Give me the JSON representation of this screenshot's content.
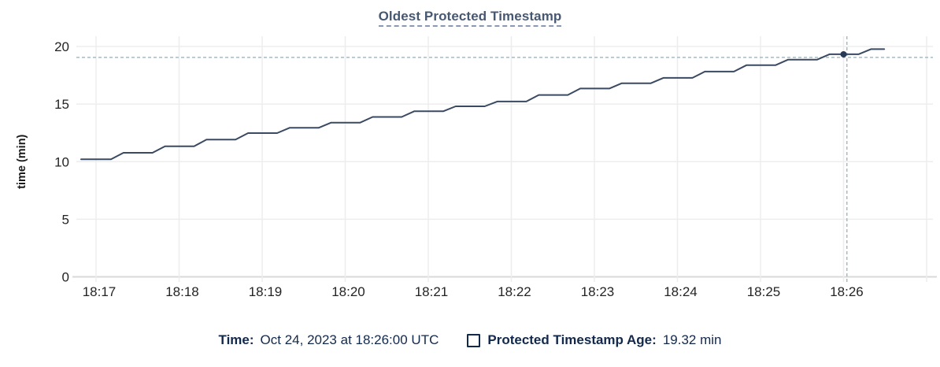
{
  "header": {
    "title": "Oldest Protected Timestamp"
  },
  "legend": {
    "time_label": "Time:",
    "time_value": "Oct 24, 2023 at 18:26:00 UTC",
    "series_checkbox_state": "unchecked",
    "series_label": "Protected Timestamp Age:",
    "series_value": "19.32 min"
  },
  "colors": {
    "title": "#475872",
    "title_underline": "#8a99b3",
    "axis_text": "#242424",
    "axis_label_text": "#1b1b1b",
    "grid": "#ededed",
    "zero_line": "#d9d9d9",
    "series_line": "#3a4a63",
    "crosshair": "#a7bac3",
    "hover_dot": "#273a55",
    "legend_text": "#13294b"
  },
  "chart_data": {
    "type": "line",
    "title": "Oldest Protected Timestamp",
    "xlabel": "",
    "ylabel": "time (min)",
    "ylim": [
      0,
      20
    ],
    "y_ticks": [
      0,
      5,
      10,
      15,
      20
    ],
    "grid": true,
    "x_base_time": "18:16:00 UTC",
    "x_unit": "minutes after 18:16:00",
    "x_ticks": [
      {
        "minute": 1,
        "label": "18:17"
      },
      {
        "minute": 2,
        "label": "18:18"
      },
      {
        "minute": 3,
        "label": "18:19"
      },
      {
        "minute": 4,
        "label": "18:20"
      },
      {
        "minute": 5,
        "label": "18:21"
      },
      {
        "minute": 6,
        "label": "18:22"
      },
      {
        "minute": 7,
        "label": "18:23"
      },
      {
        "minute": 8,
        "label": "18:24"
      },
      {
        "minute": 9,
        "label": "18:25"
      },
      {
        "minute": 10,
        "label": "18:26"
      },
      {
        "minute": 11,
        "label": ""
      }
    ],
    "series": [
      {
        "name": "Protected Timestamp Age",
        "unit": "min",
        "points": [
          [
            0.82,
            10.2
          ],
          [
            1.18,
            10.2
          ],
          [
            1.33,
            10.77
          ],
          [
            1.68,
            10.77
          ],
          [
            1.83,
            11.34
          ],
          [
            2.18,
            11.34
          ],
          [
            2.33,
            11.91
          ],
          [
            2.68,
            11.91
          ],
          [
            2.83,
            12.48
          ],
          [
            3.18,
            12.48
          ],
          [
            3.33,
            12.94
          ],
          [
            3.68,
            12.94
          ],
          [
            3.83,
            13.39
          ],
          [
            4.18,
            13.39
          ],
          [
            4.33,
            13.88
          ],
          [
            4.68,
            13.88
          ],
          [
            4.83,
            14.37
          ],
          [
            5.18,
            14.37
          ],
          [
            5.33,
            14.8
          ],
          [
            5.68,
            14.8
          ],
          [
            5.83,
            15.22
          ],
          [
            6.18,
            15.22
          ],
          [
            6.33,
            15.79
          ],
          [
            6.68,
            15.79
          ],
          [
            6.83,
            16.35
          ],
          [
            7.18,
            16.35
          ],
          [
            7.33,
            16.81
          ],
          [
            7.68,
            16.81
          ],
          [
            7.83,
            17.27
          ],
          [
            8.18,
            17.27
          ],
          [
            8.33,
            17.82
          ],
          [
            8.68,
            17.82
          ],
          [
            8.83,
            18.37
          ],
          [
            9.18,
            18.37
          ],
          [
            9.33,
            18.85
          ],
          [
            9.68,
            18.85
          ],
          [
            9.83,
            19.32
          ],
          [
            10.18,
            19.32
          ],
          [
            10.33,
            19.77
          ],
          [
            10.49,
            19.77
          ]
        ]
      }
    ],
    "hover_point": {
      "minute": 10.0,
      "value": 19.32,
      "time_label": "Oct 24, 2023 at 18:26:00 UTC",
      "value_label": "19.32 min"
    },
    "crosshair": {
      "h_value": 19.05,
      "v_minute": 10.04
    },
    "legend_position": "bottom-center"
  }
}
